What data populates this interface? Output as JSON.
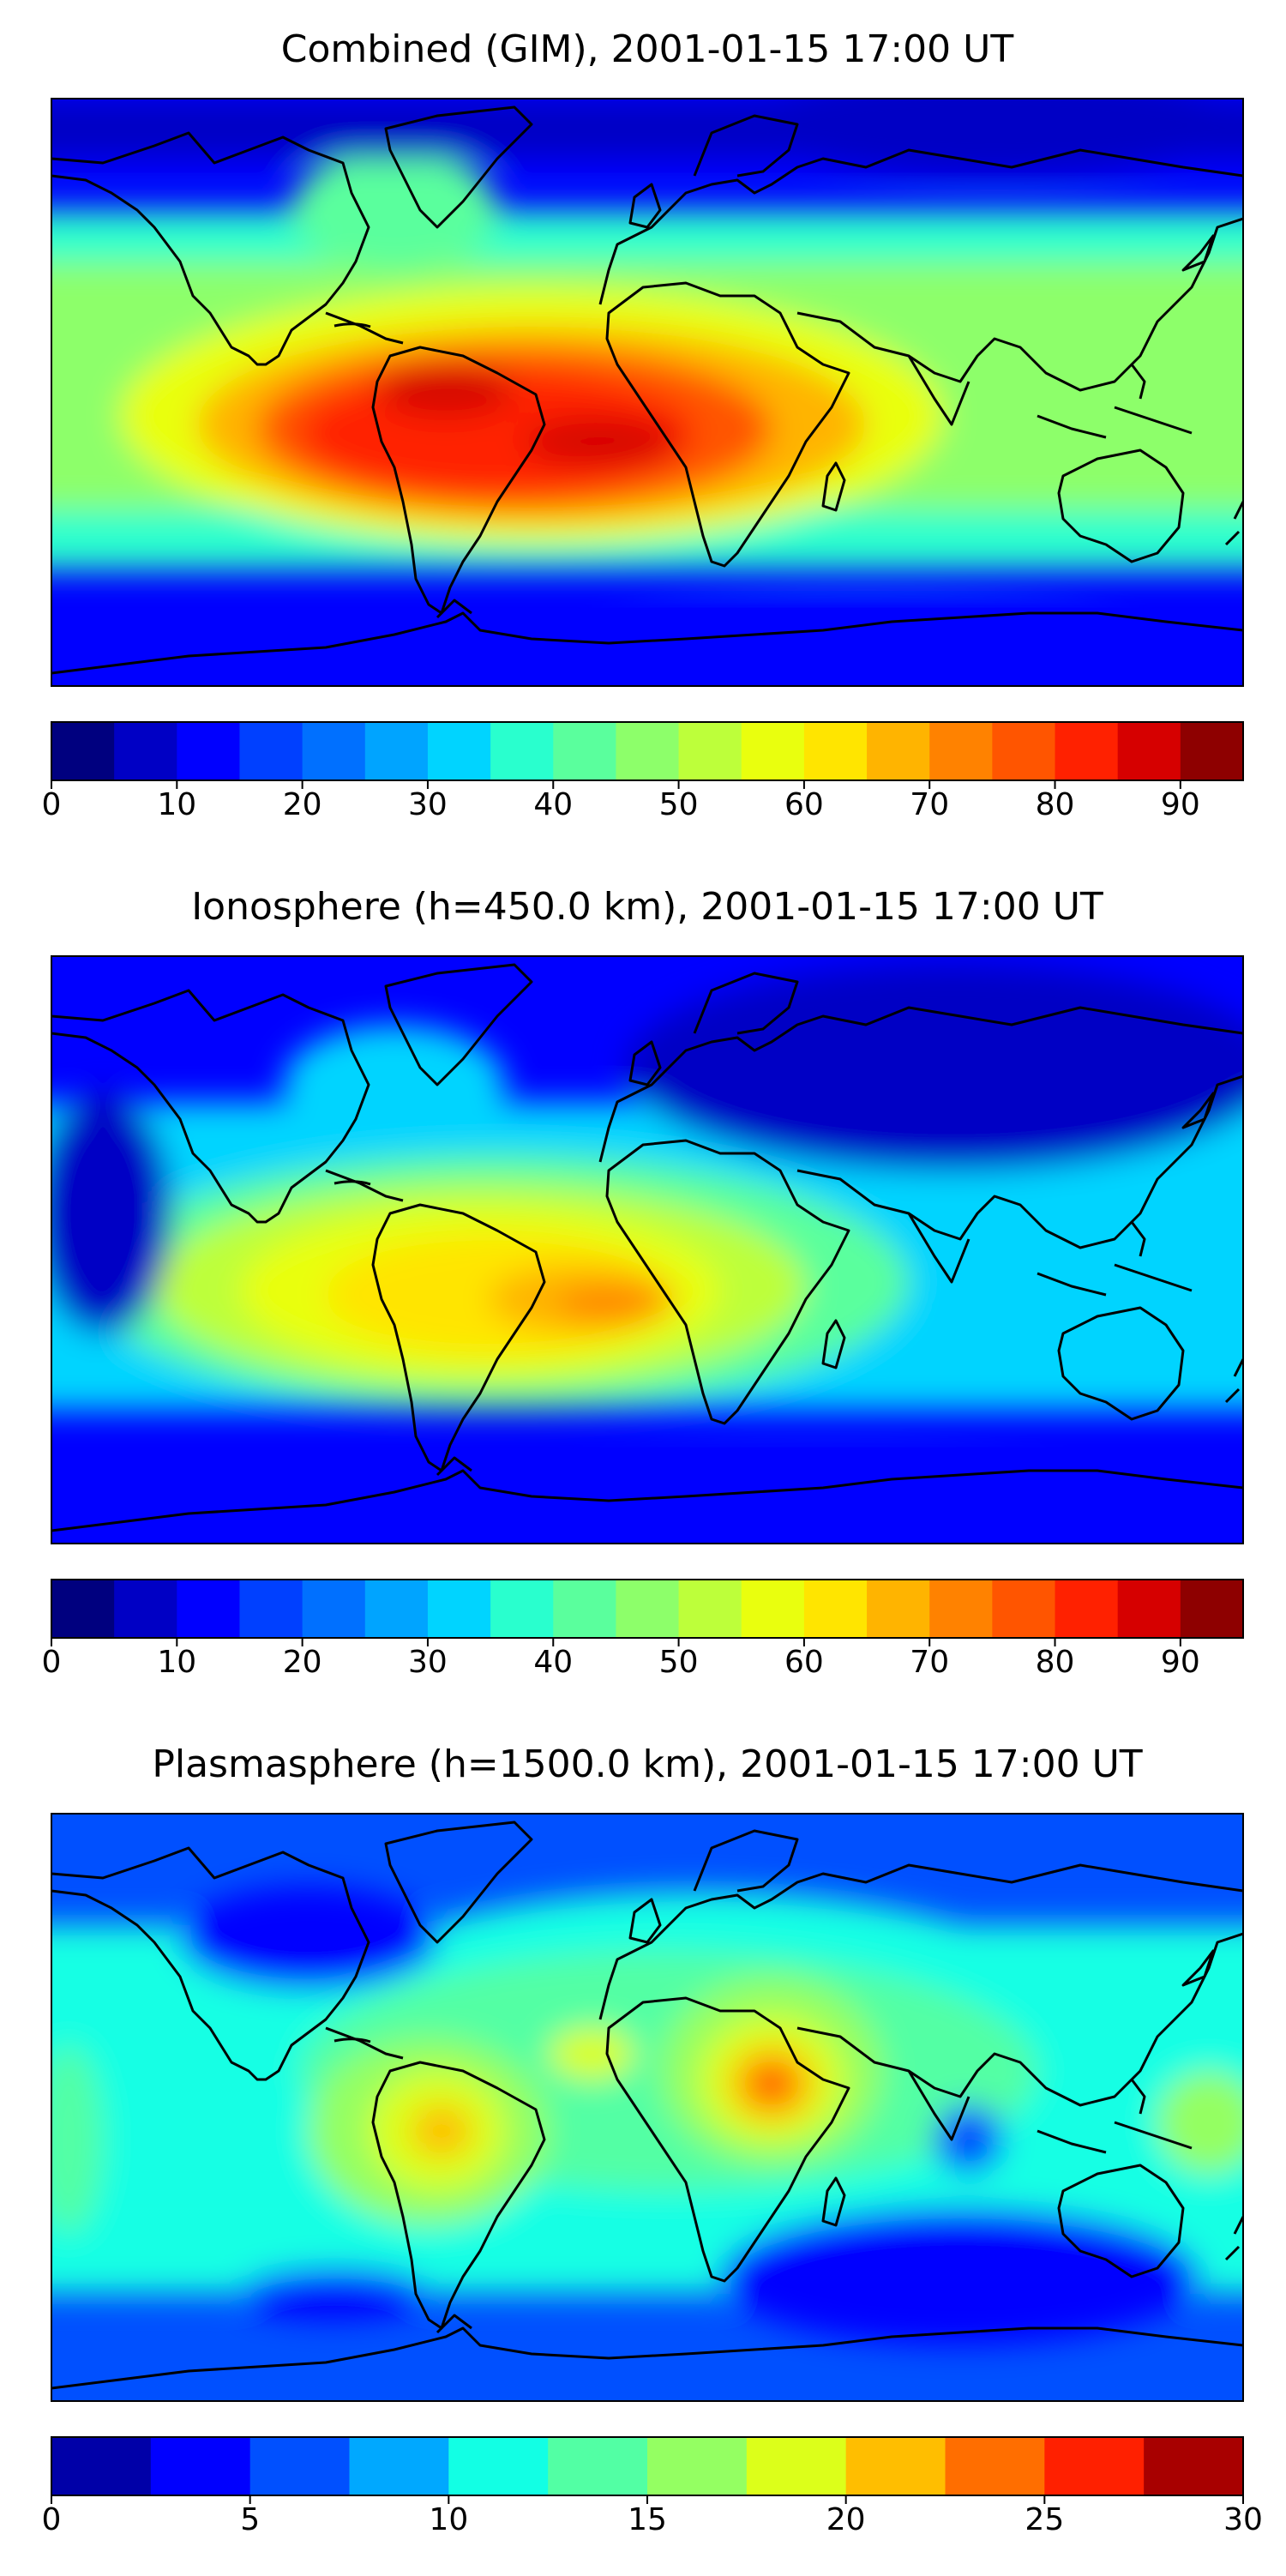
{
  "figure": {
    "panels": [
      {
        "title": "Combined (GIM), 2001-01-15 17:00 UT",
        "colorbar": {
          "min": 0,
          "max": 95,
          "step": 5,
          "tick_labels": [
            "0",
            "10",
            "20",
            "30",
            "40",
            "50",
            "60",
            "70",
            "80",
            "90"
          ],
          "tick_values": [
            0,
            10,
            20,
            30,
            40,
            50,
            60,
            70,
            80,
            90
          ],
          "colors": [
            "#00007f",
            "#0000c5",
            "#0000ff",
            "#0040ff",
            "#0070ff",
            "#00a4ff",
            "#00d4ff",
            "#29ffce",
            "#5aff9d",
            "#8dff6a",
            "#bdff3a",
            "#e9ff0e",
            "#ffe500",
            "#ffb400",
            "#ff8200",
            "#ff5500",
            "#ff2100",
            "#d60000",
            "#8e0000"
          ]
        },
        "map_values": {
          "background_level": 12,
          "features": [
            {
              "region": "South America / tropical Atlantic",
              "level": 80
            },
            {
              "region": "central Africa",
              "level": 70
            },
            {
              "region": "equatorial belt",
              "level": 45
            },
            {
              "region": "north polar",
              "level": 8
            },
            {
              "region": "south polar",
              "level": 12
            }
          ]
        }
      },
      {
        "title": "Ionosphere  (h=450.0 km), 2001-01-15 17:00 UT",
        "colorbar": {
          "min": 0,
          "max": 95,
          "step": 5,
          "tick_labels": [
            "0",
            "10",
            "20",
            "30",
            "40",
            "50",
            "60",
            "70",
            "80",
            "90"
          ],
          "tick_values": [
            0,
            10,
            20,
            30,
            40,
            50,
            60,
            70,
            80,
            90
          ],
          "colors": [
            "#00007f",
            "#0000c5",
            "#0000ff",
            "#0040ff",
            "#0070ff",
            "#00a4ff",
            "#00d4ff",
            "#29ffce",
            "#5aff9d",
            "#8dff6a",
            "#bdff3a",
            "#e9ff0e",
            "#ffe500",
            "#ffb400",
            "#ff8200",
            "#ff5500",
            "#ff2100",
            "#d60000",
            "#8e0000"
          ]
        },
        "map_values": {
          "background_level": 12,
          "features": [
            {
              "region": "South America / tropical Atlantic",
              "level": 60
            },
            {
              "region": "West Africa",
              "level": 70
            },
            {
              "region": "equatorial belt",
              "level": 40
            },
            {
              "region": "Asia",
              "level": 8
            },
            {
              "region": "south polar",
              "level": 10
            }
          ]
        }
      },
      {
        "title": "Plasmasphere (h=1500.0 km), 2001-01-15 17:00 UT",
        "colorbar": {
          "min": 0,
          "max": 30,
          "step": 2.5,
          "tick_labels": [
            "0",
            "5",
            "10",
            "15",
            "20",
            "25",
            "30"
          ],
          "tick_values": [
            0,
            5,
            10,
            15,
            20,
            25,
            30
          ],
          "colors": [
            "#0000a8",
            "#0000ff",
            "#0050ff",
            "#00a8ff",
            "#12ffe4",
            "#52ffa4",
            "#94ff62",
            "#dcff1a",
            "#ffbe00",
            "#ff6e00",
            "#ff2000",
            "#a80000"
          ]
        },
        "map_values": {
          "background_level": 7,
          "features": [
            {
              "region": "East Africa",
              "level": 25
            },
            {
              "region": "South America",
              "level": 22
            },
            {
              "region": "Arabia / Asia",
              "level": 12
            },
            {
              "region": "North America",
              "level": 3
            },
            {
              "region": "South Pacific",
              "level": 4
            }
          ]
        }
      }
    ]
  }
}
